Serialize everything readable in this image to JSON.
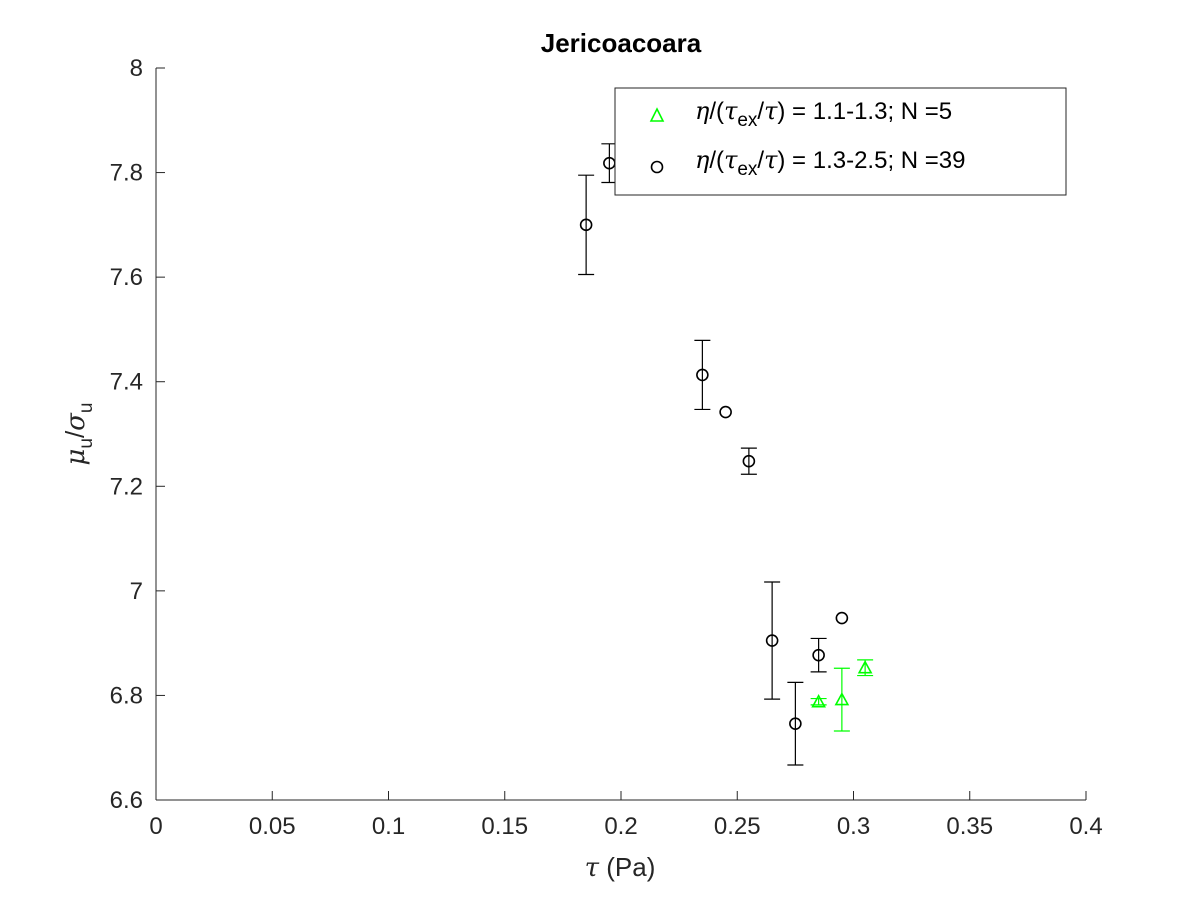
{
  "chart_data": {
    "type": "scatter",
    "title": "Jericoacoara",
    "xlabel": {
      "symbol": "τ",
      "text": " (Pa)"
    },
    "ylabel": {
      "mu": "μ",
      "mu_sub": "u",
      "slash": "/",
      "sigma": "σ",
      "sigma_sub": "u"
    },
    "xlim": [
      0,
      0.4
    ],
    "ylim": [
      6.6,
      8
    ],
    "xticks": [
      0,
      0.05,
      0.1,
      0.15,
      0.2,
      0.25,
      0.3,
      0.35,
      0.4
    ],
    "xtick_labels": [
      "0",
      "0.05",
      "0.1",
      "0.15",
      "0.2",
      "0.25",
      "0.3",
      "0.35",
      "0.4"
    ],
    "yticks": [
      6.6,
      6.8,
      7,
      7.2,
      7.4,
      7.6,
      7.8,
      8
    ],
    "ytick_labels": [
      "6.6",
      "6.8",
      "7",
      "7.2",
      "7.4",
      "7.6",
      "7.8",
      "8"
    ],
    "legend_position": "top-right",
    "series": [
      {
        "name": "η/(τex/τ) = 1.1-1.3; N =5",
        "legend": {
          "eta": "η",
          "open": "/(",
          "tau1": "τ",
          "sub": "ex",
          "mid": "/",
          "tau2": "τ",
          "rest": ") = 1.1-1.3; N =5"
        },
        "marker": "triangle",
        "color": "#00ff00",
        "points": [
          {
            "x": 0.285,
            "y": 6.788,
            "err": 0.006
          },
          {
            "x": 0.295,
            "y": 6.792,
            "err": 0.06
          },
          {
            "x": 0.305,
            "y": 6.853,
            "err": 0.015
          }
        ]
      },
      {
        "name": "η/(τex/τ) = 1.3-2.5; N =39",
        "legend": {
          "eta": "η",
          "open": "/(",
          "tau1": "τ",
          "sub": "ex",
          "mid": "/",
          "tau2": "τ",
          "rest": ") = 1.3-2.5; N =39"
        },
        "marker": "circle",
        "color": "#000000",
        "points": [
          {
            "x": 0.185,
            "y": 7.7,
            "err": 0.095
          },
          {
            "x": 0.195,
            "y": 7.818,
            "err": 0.037
          },
          {
            "x": 0.235,
            "y": 7.413,
            "err": 0.066
          },
          {
            "x": 0.245,
            "y": 7.342,
            "err": 0.0
          },
          {
            "x": 0.255,
            "y": 7.248,
            "err": 0.025
          },
          {
            "x": 0.265,
            "y": 6.905,
            "err": 0.112
          },
          {
            "x": 0.275,
            "y": 6.746,
            "err": 0.079
          },
          {
            "x": 0.285,
            "y": 6.877,
            "err": 0.032
          },
          {
            "x": 0.295,
            "y": 6.948,
            "err": 0.0
          }
        ]
      }
    ]
  }
}
